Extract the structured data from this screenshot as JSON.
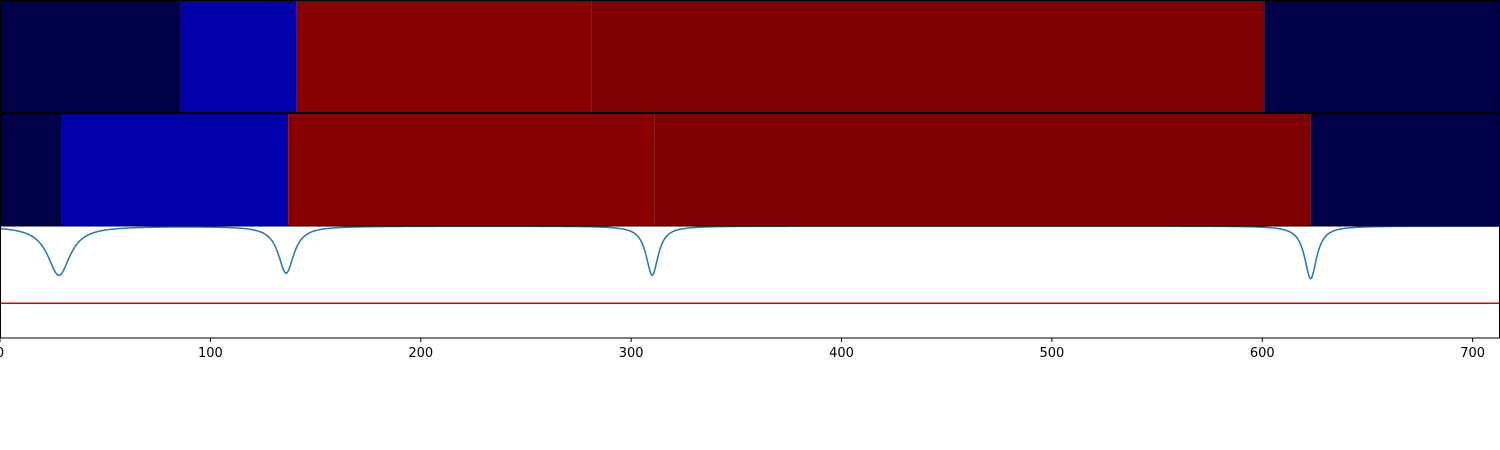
{
  "chart_data": {
    "type": "heatmap",
    "xlim": [
      0,
      713
    ],
    "xticks": [
      "0",
      "100",
      "200",
      "300",
      "400",
      "500",
      "600",
      "700"
    ],
    "palette": {
      "dark_navy": "#00004a",
      "blue": "#0000aa",
      "red": "#880000",
      "dark_red": "#7f0000"
    },
    "rows": [
      {
        "name": "",
        "segments": [
          {
            "start": 0,
            "end": 86,
            "color": "#00004a"
          },
          {
            "start": 86,
            "end": 141,
            "color": "#0000aa"
          },
          {
            "start": 141,
            "end": 281,
            "color": "#880000"
          },
          {
            "start": 281,
            "end": 601,
            "color": "#7f0000"
          },
          {
            "start": 601,
            "end": 713,
            "color": "#00004a"
          }
        ]
      },
      {
        "name": "",
        "segments": [
          {
            "start": 0,
            "end": 29,
            "color": "#00004a"
          },
          {
            "start": 29,
            "end": 137,
            "color": "#0000aa"
          },
          {
            "start": 137,
            "end": 311,
            "color": "#880000"
          },
          {
            "start": 311,
            "end": 623,
            "color": "#7f0000"
          },
          {
            "start": 623,
            "end": 713,
            "color": "#00004a"
          }
        ]
      }
    ],
    "line_panel": {
      "ylim": [
        0,
        1
      ],
      "signal_color": "#1f77b4",
      "baseline": 1.0,
      "dips": [
        {
          "x": 28,
          "y": 0.56,
          "half_width": 6.5
        },
        {
          "x": 136,
          "y": 0.58,
          "half_width": 4.5
        },
        {
          "x": 310,
          "y": 0.56,
          "half_width": 3.5
        },
        {
          "x": 623,
          "y": 0.53,
          "half_width": 3.5
        }
      ],
      "threshold": 0.31,
      "threshold_color": "#dd0000"
    }
  }
}
